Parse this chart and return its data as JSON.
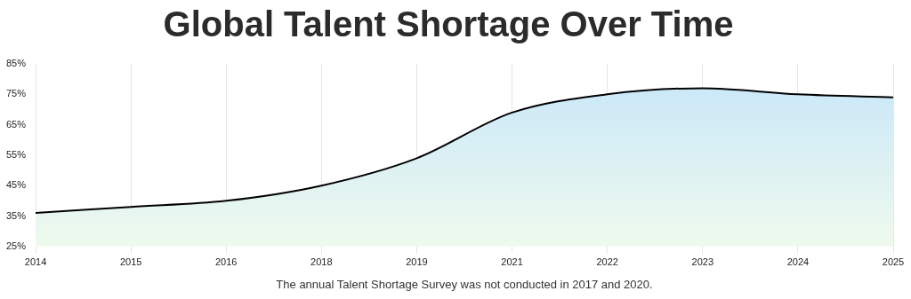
{
  "chart_data": {
    "type": "area",
    "title": "Global Talent Shortage Over Time",
    "categories": [
      "2014",
      "2015",
      "2016",
      "2018",
      "2019",
      "2021",
      "2022",
      "2023",
      "2024",
      "2025"
    ],
    "series": [
      {
        "color": "#000000",
        "values": [
          36,
          38,
          40,
          45,
          54,
          69,
          75,
          77,
          75,
          74
        ]
      }
    ],
    "ylim": [
      25,
      85
    ],
    "yticks": [
      {
        "value": 25,
        "label": "25%"
      },
      {
        "value": 35,
        "label": "35%"
      },
      {
        "value": 45,
        "label": "45%"
      },
      {
        "value": 55,
        "label": "55%"
      },
      {
        "value": 65,
        "label": "65%"
      },
      {
        "value": 75,
        "label": "75%"
      },
      {
        "value": 85,
        "label": "85%"
      }
    ],
    "grid": "x",
    "legend": false,
    "marker": "none",
    "line_style": "solid",
    "annotations": [
      "The annual Talent Shortage Survey was not conducted in 2017 and 2020."
    ]
  }
}
